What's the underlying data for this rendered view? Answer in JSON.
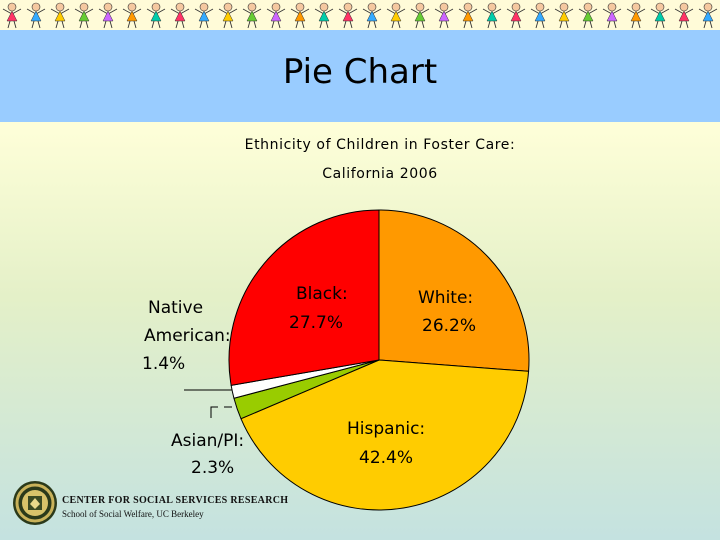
{
  "slide": {
    "title": "Pie Chart",
    "footer_line1": "CENTER FOR SOCIAL SERVICES RESEARCH",
    "footer_line2": "School of Social Welfare, UC Berkeley"
  },
  "chart_data": {
    "type": "pie",
    "title": "Ethnicity of Children in Foster Care:",
    "subtitle": "California 2006",
    "slices": [
      {
        "name": "White:",
        "value": 26.2,
        "value_label": "26.2%",
        "color": "#ff9900"
      },
      {
        "name": "Hispanic:",
        "value": 42.4,
        "value_label": "42.4%",
        "color": "#ffcc00"
      },
      {
        "name": "Asian/PI:",
        "value": 2.3,
        "value_label": "2.3%",
        "color": "#99cc00"
      },
      {
        "name": "Native American:",
        "value": 1.4,
        "value_label": "1.4%",
        "color": "#ffffff"
      },
      {
        "name": "Black:",
        "value": 27.7,
        "value_label": "27.7%",
        "color": "#ff0000"
      }
    ],
    "legend": "none"
  }
}
